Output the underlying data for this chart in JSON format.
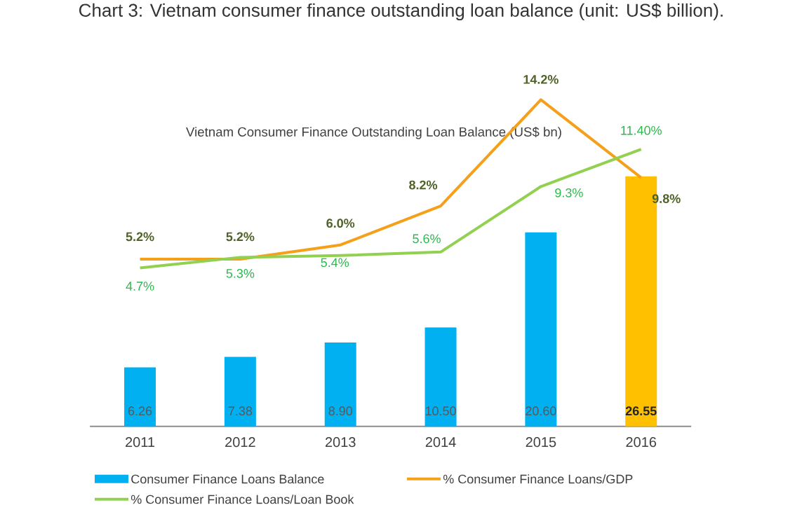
{
  "chart_data": {
    "type": "bar",
    "title": "Chart 3: Vietnam consumer finance outstanding loan balance (unit: US$ billion).",
    "subtitle": "Vietnam Consumer Finance Outstanding Loan Balance (US$ bn)",
    "categories": [
      "2011",
      "2012",
      "2013",
      "2014",
      "2015",
      "2016"
    ],
    "tick_labels": "x",
    "legend": "bottom",
    "series": [
      {
        "name": "Consumer Finance Loans Balance",
        "colors": [
          "#00b0f0",
          "#00b0f0",
          "#00b0f0",
          "#00b0f0",
          "#00b0f0",
          "#ffc000"
        ],
        "values": [
          6.26,
          7.38,
          8.9,
          10.5,
          20.6,
          26.55
        ],
        "value_labels": [
          "6.26",
          "7.38",
          "8.90",
          "10.50",
          "20.60",
          "26.55"
        ]
      },
      {
        "name": "% Consumer Finance Loans/GDP",
        "type": "line",
        "axis": "y2",
        "color": "#f5a01a",
        "values": [
          5.2,
          5.2,
          6.0,
          8.2,
          14.2,
          9.8
        ],
        "value_labels": [
          "5.2%",
          "5.2%",
          "6.0%",
          "8.2%",
          "14.2%",
          "9.8%"
        ]
      },
      {
        "name": "% Consumer Finance Loans/Loan Book",
        "type": "line",
        "axis": "y2",
        "color": "#92d050",
        "values": [
          4.7,
          5.3,
          5.4,
          5.6,
          9.3,
          11.4
        ],
        "value_labels": [
          "4.7%",
          "5.3%",
          "5.4%",
          "5.6%",
          "9.3%",
          "11.40%"
        ]
      }
    ]
  }
}
